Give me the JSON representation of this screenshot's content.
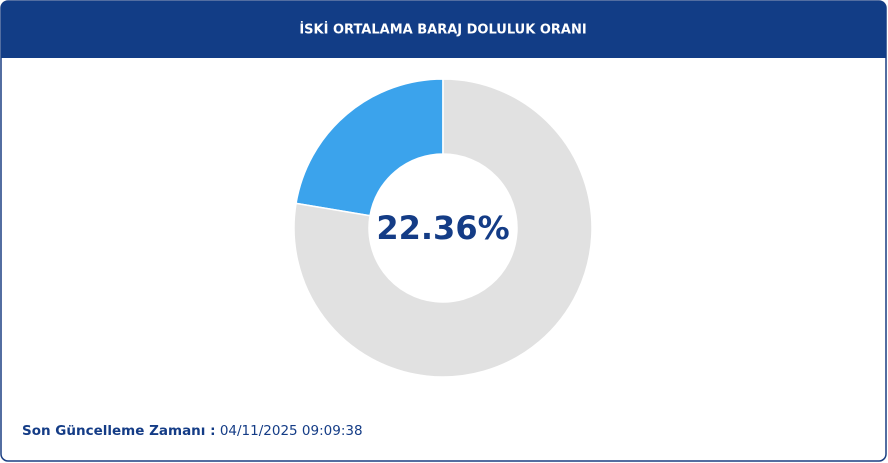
{
  "chart_data": {
    "type": "donut",
    "title": "İSKİ ORTALAMA BARAJ DOLULUK ORANI",
    "values": [
      22.36,
      77.64
    ],
    "value_labels": [
      "22.36%",
      null
    ],
    "colors": [
      "#3ba3ec",
      "#e1e1e1"
    ]
  },
  "footer": {
    "label": "Son Güncelleme Zamanı :",
    "timestamp": "04/11/2025 09:09:38"
  }
}
